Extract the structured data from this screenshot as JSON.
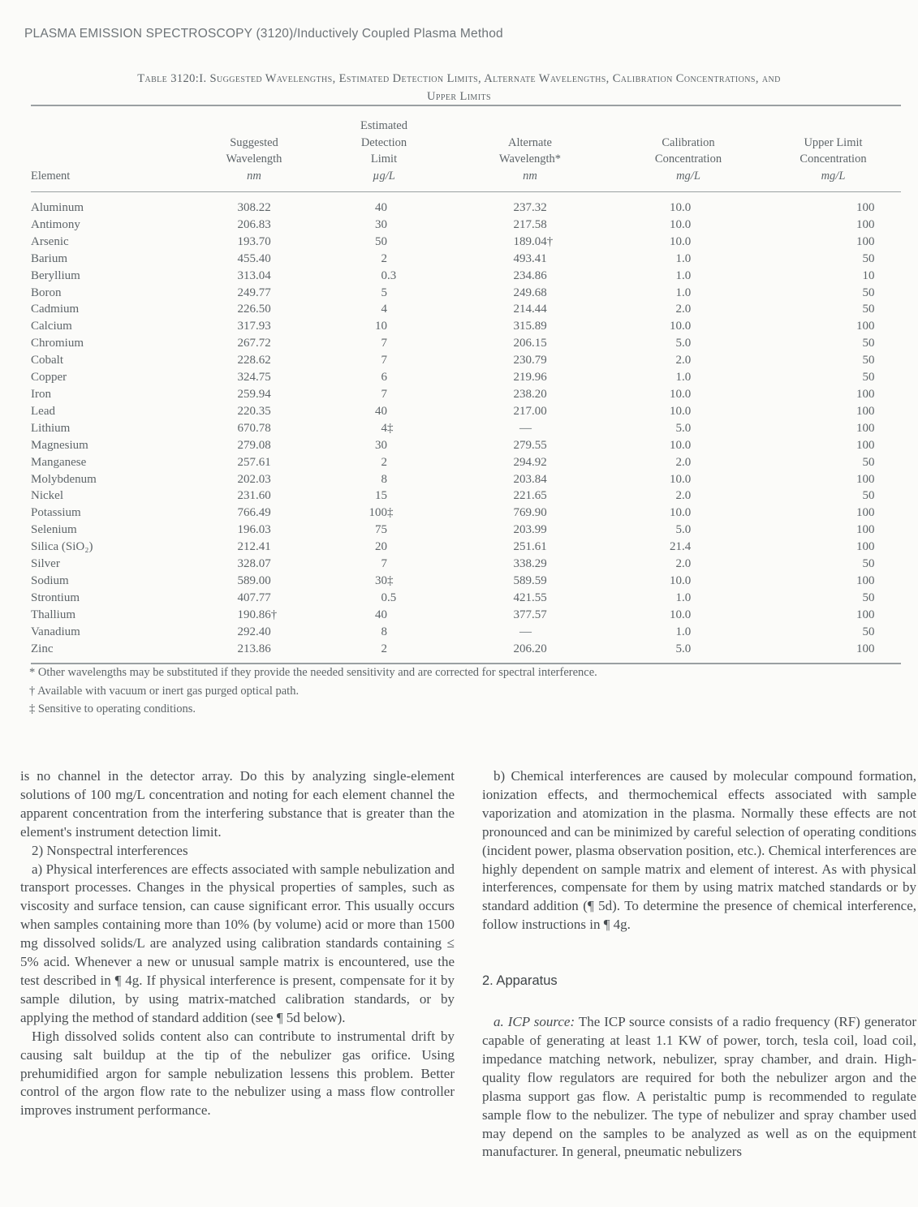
{
  "page": {
    "running_header": "PLASMA EMISSION SPECTROSCOPY (3120)/Inductively Coupled Plasma Method"
  },
  "table": {
    "title": "Table 3120:I. Suggested Wavelengths, Estimated Detection Limits, Alternate Wavelengths, Calibration Concentrations, and",
    "title_line2": "Upper Limits",
    "columns": [
      {
        "label": "Element"
      },
      {
        "lines": [
          "Suggested",
          "Wavelength"
        ],
        "unit": "nm"
      },
      {
        "lines": [
          "Estimated",
          "Detection",
          "Limit"
        ],
        "unit": "µg/L"
      },
      {
        "lines": [
          "Alternate",
          "Wavelength*"
        ],
        "unit": "nm"
      },
      {
        "lines": [
          "Calibration",
          "Concentration"
        ],
        "unit": "mg/L"
      },
      {
        "lines": [
          "Upper Limit",
          "Concentration"
        ],
        "unit": "mg/L"
      }
    ],
    "rows": [
      [
        "Aluminum",
        "308.22",
        "40",
        "237.32",
        "10.0",
        "100"
      ],
      [
        "Antimony",
        "206.83",
        "30",
        "217.58",
        "10.0",
        "100"
      ],
      [
        "Arsenic",
        "193.70",
        "50",
        "189.04†",
        "10.0",
        "100"
      ],
      [
        "Barium",
        "455.40",
        "2",
        "493.41",
        "1.0",
        "50"
      ],
      [
        "Beryllium",
        "313.04",
        "0.3",
        "234.86",
        "1.0",
        "10"
      ],
      [
        "Boron",
        "249.77",
        "5",
        "249.68",
        "1.0",
        "50"
      ],
      [
        "Cadmium",
        "226.50",
        "4",
        "214.44",
        "2.0",
        "50"
      ],
      [
        "Calcium",
        "317.93",
        "10",
        "315.89",
        "10.0",
        "100"
      ],
      [
        "Chromium",
        "267.72",
        "7",
        "206.15",
        "5.0",
        "50"
      ],
      [
        "Cobalt",
        "228.62",
        "7",
        "230.79",
        "2.0",
        "50"
      ],
      [
        "Copper",
        "324.75",
        "6",
        "219.96",
        "1.0",
        "50"
      ],
      [
        "Iron",
        "259.94",
        "7",
        "238.20",
        "10.0",
        "100"
      ],
      [
        "Lead",
        "220.35",
        "40",
        "217.00",
        "10.0",
        "100"
      ],
      [
        "Lithium",
        "670.78",
        "4‡",
        "—",
        "5.0",
        "100"
      ],
      [
        "Magnesium",
        "279.08",
        "30",
        "279.55",
        "10.0",
        "100"
      ],
      [
        "Manganese",
        "257.61",
        "2",
        "294.92",
        "2.0",
        "50"
      ],
      [
        "Molybdenum",
        "202.03",
        "8",
        "203.84",
        "10.0",
        "100"
      ],
      [
        "Nickel",
        "231.60",
        "15",
        "221.65",
        "2.0",
        "50"
      ],
      [
        "Potassium",
        "766.49",
        "100‡",
        "769.90",
        "10.0",
        "100"
      ],
      [
        "Selenium",
        "196.03",
        "75",
        "203.99",
        "5.0",
        "100"
      ],
      [
        "Silica (SiO₂)",
        "212.41",
        "20",
        "251.61",
        "21.4",
        "100"
      ],
      [
        "Silver",
        "328.07",
        "7",
        "338.29",
        "2.0",
        "50"
      ],
      [
        "Sodium",
        "589.00",
        "30‡",
        "589.59",
        "10.0",
        "100"
      ],
      [
        "Strontium",
        "407.77",
        "0.5",
        "421.55",
        "1.0",
        "50"
      ],
      [
        "Thallium",
        "190.86†",
        "40",
        "377.57",
        "10.0",
        "100"
      ],
      [
        "Vanadium",
        "292.40",
        "8",
        "—",
        "1.0",
        "50"
      ],
      [
        "Zinc",
        "213.86",
        "2",
        "206.20",
        "5.0",
        "100"
      ]
    ],
    "footnotes": [
      "* Other wavelengths may be substituted if they provide the needed sensitivity and are corrected for spectral interference.",
      "† Available with vacuum or inert gas purged optical path.",
      "‡ Sensitive to operating conditions."
    ]
  },
  "body": {
    "left": {
      "p1": "is no channel in the detector array. Do this by analyzing single-element solutions of 100 mg/L concentration and noting for each element channel the apparent concentration from the interfering substance that is greater than the element's instrument detection limit.",
      "p2": "2) Nonspectral interferences",
      "p3": "a) Physical interferences are effects associated with sample nebulization and transport processes. Changes in the physical properties of samples, such as viscosity and surface tension, can cause significant error. This usually occurs when samples containing more than 10% (by volume) acid or more than 1500 mg dissolved solids/L are analyzed using calibration standards containing ≤ 5% acid. Whenever a new or unusual sample matrix is encountered, use the test described in ¶ 4g. If physical interference is present, compensate for it by sample dilution, by using matrix-matched calibration standards, or by applying the method of standard addition (see ¶ 5d below).",
      "p4": "High dissolved solids content also can contribute to instrumental drift by causing salt buildup at the tip of the nebulizer gas orifice. Using prehumidified argon for sample nebulization lessens this problem. Better control of the argon flow rate to the nebulizer using a mass flow controller improves instrument performance."
    },
    "right": {
      "p1": "b) Chemical interferences are caused by molecular compound formation, ionization effects, and thermochemical effects associated with sample vaporization and atomization in the plasma. Normally these effects are not pronounced and can be minimized by careful selection of operating conditions (incident power, plasma observation position, etc.). Chemical interferences are highly dependent on sample matrix and element of interest. As with physical interferences, compensate for them by using matrix matched standards or by standard addition (¶ 5d). To determine the presence of chemical interference, follow instructions in ¶ 4g.",
      "heading": "2. Apparatus",
      "p2_lead": "a. ICP source:",
      "p2_text": " The ICP source consists of a radio frequency (RF) generator capable of generating at least 1.1 KW of power, torch, tesla coil, load coil, impedance matching network, nebulizer, spray chamber, and drain. High-quality flow regulators are required for both the nebulizer argon and the plasma support gas flow. A peristaltic pump is recommended to regulate sample flow to the nebulizer. The type of nebulizer and spray chamber used may depend on the samples to be analyzed as well as on the equipment manufacturer. In general, pneumatic nebulizers"
    }
  }
}
